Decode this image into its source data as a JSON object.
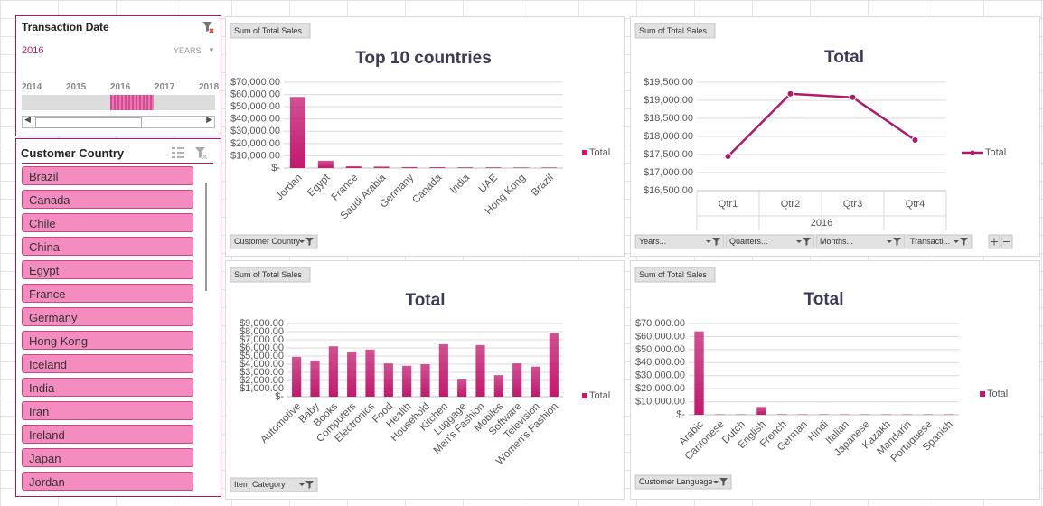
{
  "timeline": {
    "title": "Transaction Date",
    "selected": "2016",
    "level": "YEARS",
    "years": [
      "2014",
      "2015",
      "2016",
      "2017",
      "2018"
    ],
    "selected_index": 2
  },
  "country_slicer": {
    "title": "Customer Country",
    "items": [
      "Brazil",
      "Canada",
      "Chile",
      "China",
      "Egypt",
      "France",
      "Germany",
      "Hong Kong",
      "Iceland",
      "India",
      "Iran",
      "Ireland",
      "Japan",
      "Jordan"
    ]
  },
  "chart_data": [
    {
      "type": "bar",
      "title": "Top 10 countries",
      "field_button": "Sum of Total Sales",
      "filter_buttons": [
        "Customer Country"
      ],
      "categories": [
        "Jordan",
        "Egypt",
        "France",
        "Saudi Arabia",
        "Germany",
        "Canada",
        "India",
        "UAE",
        "Hong Kong",
        "Brazil"
      ],
      "series": [
        {
          "name": "Total",
          "color": "#c2186e",
          "values": [
            58000,
            6000,
            1500,
            1200,
            800,
            700,
            600,
            600,
            500,
            500
          ]
        }
      ],
      "ylim": [
        0,
        70000
      ],
      "yticks": [
        {
          "value": 0,
          "label": "$-"
        },
        {
          "value": 10000,
          "label": "$10,000.00"
        },
        {
          "value": 20000,
          "label": "$20,000.00"
        },
        {
          "value": 30000,
          "label": "$30,000.00"
        },
        {
          "value": 40000,
          "label": "$40,000.00"
        },
        {
          "value": 50000,
          "label": "$50,000.00"
        },
        {
          "value": 60000,
          "label": "$60,000.00"
        },
        {
          "value": 70000,
          "label": "$70,000.00"
        }
      ],
      "grid": true,
      "legend": "right"
    },
    {
      "type": "line",
      "title": "Total",
      "field_button": "Sum of Total Sales",
      "filter_buttons": [
        "Years...",
        "Quarters...",
        "Months...",
        "Transacti..."
      ],
      "categories": [
        "Qtr1",
        "Qtr2",
        "Qtr3",
        "Qtr4"
      ],
      "group_label": "2016",
      "series": [
        {
          "name": "Total",
          "color": "#b0186a",
          "values": [
            17450,
            19180,
            19080,
            17900
          ]
        }
      ],
      "ylim": [
        16500,
        19500
      ],
      "yticks": [
        {
          "value": 16500,
          "label": "$16,500.00"
        },
        {
          "value": 17000,
          "label": "$17,000.00"
        },
        {
          "value": 17500,
          "label": "$17,500.00"
        },
        {
          "value": 18000,
          "label": "$18,000.00"
        },
        {
          "value": 18500,
          "label": "$18,500.00"
        },
        {
          "value": 19000,
          "label": "$19,000.00"
        },
        {
          "value": 19500,
          "label": "$19,500.00"
        }
      ],
      "grid": true,
      "legend": "right"
    },
    {
      "type": "bar",
      "title": "Total",
      "field_button": "Sum of Total Sales",
      "filter_buttons": [
        "Item Category"
      ],
      "categories": [
        "Automotive",
        "Baby",
        "Books",
        "Computers",
        "Electronics",
        "Food",
        "Health",
        "Household",
        "Kitchen",
        "Luggage",
        "Men's Fashion",
        "Mobiles",
        "Software",
        "Television",
        "Women's Fashion"
      ],
      "series": [
        {
          "name": "Total",
          "color": "#c2186e",
          "values": [
            4900,
            4450,
            6200,
            5450,
            5800,
            4100,
            3800,
            4000,
            6450,
            2100,
            6350,
            2650,
            4100,
            3700,
            7800
          ]
        }
      ],
      "ylim": [
        0,
        9000
      ],
      "yticks": [
        {
          "value": 0,
          "label": "$-"
        },
        {
          "value": 1000,
          "label": "$1,000.00"
        },
        {
          "value": 2000,
          "label": "$2,000.00"
        },
        {
          "value": 3000,
          "label": "$3,000.00"
        },
        {
          "value": 4000,
          "label": "$4,000.00"
        },
        {
          "value": 5000,
          "label": "$5,000.00"
        },
        {
          "value": 6000,
          "label": "$6,000.00"
        },
        {
          "value": 7000,
          "label": "$7,000.00"
        },
        {
          "value": 8000,
          "label": "$8,000.00"
        },
        {
          "value": 9000,
          "label": "$9,000.00"
        }
      ],
      "grid": true,
      "legend": "right"
    },
    {
      "type": "bar",
      "title": "Total",
      "field_button": "Sum of Total Sales",
      "filter_buttons": [
        "Customer Language"
      ],
      "categories": [
        "Arabic",
        "Cantonese",
        "Dutch",
        "English",
        "French",
        "German",
        "Hindi",
        "Italian",
        "Japanese",
        "Kazakh",
        "Mandarin",
        "Portuguese",
        "Spanish"
      ],
      "series": [
        {
          "name": "Total",
          "color": "#c2186e",
          "values": [
            64000,
            300,
            300,
            6000,
            400,
            300,
            300,
            300,
            300,
            300,
            300,
            300,
            300
          ]
        }
      ],
      "ylim": [
        0,
        70000
      ],
      "yticks": [
        {
          "value": 0,
          "label": "$-"
        },
        {
          "value": 10000,
          "label": "$10,000.00"
        },
        {
          "value": 20000,
          "label": "$20,000.00"
        },
        {
          "value": 30000,
          "label": "$30,000.00"
        },
        {
          "value": 40000,
          "label": "$40,000.00"
        },
        {
          "value": 50000,
          "label": "$50,000.00"
        },
        {
          "value": 60000,
          "label": "$60,000.00"
        },
        {
          "value": 70000,
          "label": "$70,000.00"
        }
      ],
      "grid": true,
      "legend": "right"
    }
  ]
}
